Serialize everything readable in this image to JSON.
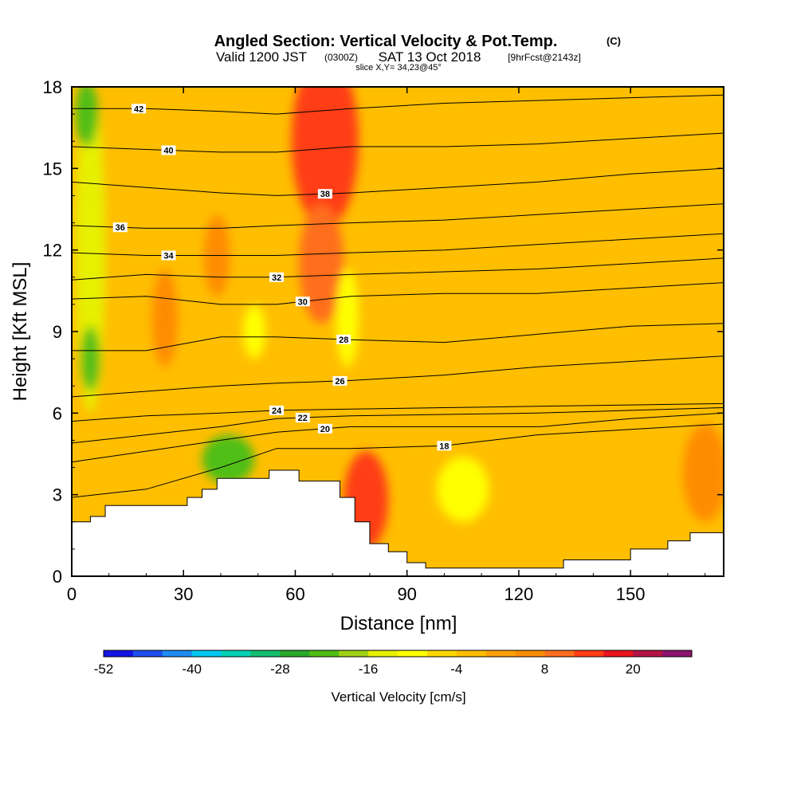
{
  "chart_data": {
    "type": "heatmap",
    "title": "Angled Section: Vertical Velocity & Pot.Temp.",
    "title_unit": "(C)",
    "subtitle_valid": "Valid 1200 JST",
    "subtitle_utc": "(0300Z)",
    "subtitle_date": "SAT 13 Oct 2018",
    "subtitle_fcst": "[9hrFcst@2143z]",
    "subtitle_slice": "slice X,Y= 34,23@45°",
    "xlabel": "Distance [nm]",
    "ylabel": "Height [Kft MSL]",
    "xlim": [
      0,
      175
    ],
    "ylim": [
      0,
      18
    ],
    "x_ticks": [
      0,
      30,
      60,
      90,
      120,
      150
    ],
    "x_tick_labels": [
      "0",
      "30",
      "60",
      "90",
      "120",
      "150"
    ],
    "y_ticks": [
      0,
      3,
      6,
      9,
      12,
      15,
      18
    ],
    "y_tick_labels": [
      "0",
      "3",
      "6",
      "9",
      "12",
      "15",
      "18"
    ],
    "colorbar": {
      "label": "Vertical Velocity [cm/s]",
      "min": -52,
      "max": 28,
      "step": 4,
      "tick_values": [
        -52,
        -40,
        -28,
        -16,
        -4,
        8,
        20
      ],
      "tick_labels": [
        "-52",
        "-40",
        "-28",
        "-16",
        "-4",
        "8",
        "20"
      ],
      "colors": [
        "#1414e6",
        "#1e50f0",
        "#1e8cf5",
        "#00c8f0",
        "#00d2b4",
        "#14be6e",
        "#28aa28",
        "#50be14",
        "#a0d214",
        "#e6f000",
        "#ffff00",
        "#ffd700",
        "#ffbe00",
        "#ffa000",
        "#ff8c00",
        "#ff6e1e",
        "#ff3c14",
        "#eb141e",
        "#b41446",
        "#8c146e"
      ]
    },
    "terrain_nm_kft": [
      [
        0,
        2.0
      ],
      [
        5,
        2.2
      ],
      [
        9,
        2.6
      ],
      [
        27,
        2.6
      ],
      [
        31,
        2.9
      ],
      [
        35,
        3.2
      ],
      [
        39,
        3.6
      ],
      [
        49,
        3.6
      ],
      [
        53,
        3.9
      ],
      [
        58,
        3.9
      ],
      [
        61,
        3.5
      ],
      [
        68,
        3.5
      ],
      [
        72,
        2.9
      ],
      [
        76,
        2.0
      ],
      [
        80,
        1.2
      ],
      [
        85,
        0.9
      ],
      [
        90,
        0.5
      ],
      [
        95,
        0.3
      ],
      [
        130,
        0.3
      ],
      [
        132,
        0.6
      ],
      [
        145,
        0.6
      ],
      [
        150,
        1.0
      ],
      [
        160,
        1.3
      ],
      [
        166,
        1.6
      ],
      [
        175,
        1.6
      ]
    ],
    "theta_isentropes": [
      {
        "value": 18,
        "label_x": 100,
        "points": [
          [
            0,
            2.9
          ],
          [
            20,
            3.2
          ],
          [
            40,
            4.0
          ],
          [
            55,
            4.7
          ],
          [
            75,
            4.7
          ],
          [
            100,
            4.8
          ],
          [
            125,
            5.2
          ],
          [
            150,
            5.4
          ],
          [
            175,
            5.6
          ]
        ]
      },
      {
        "value": 20,
        "label_x": 68,
        "points": [
          [
            0,
            4.2
          ],
          [
            20,
            4.6
          ],
          [
            40,
            5.0
          ],
          [
            55,
            5.3
          ],
          [
            75,
            5.5
          ],
          [
            100,
            5.5
          ],
          [
            126,
            5.5
          ],
          [
            150,
            5.8
          ],
          [
            175,
            6.0
          ]
        ]
      },
      {
        "value": 22,
        "label_x": 62,
        "points": [
          [
            0,
            4.9
          ],
          [
            20,
            5.2
          ],
          [
            40,
            5.5
          ],
          [
            55,
            5.8
          ],
          [
            75,
            5.9
          ],
          [
            100,
            5.95
          ],
          [
            125,
            6.0
          ],
          [
            150,
            6.1
          ],
          [
            175,
            6.2
          ]
        ]
      },
      {
        "value": 24,
        "label_x": 55,
        "points": [
          [
            0,
            5.7
          ],
          [
            20,
            5.9
          ],
          [
            40,
            6.0
          ],
          [
            55,
            6.1
          ],
          [
            75,
            6.15
          ],
          [
            100,
            6.2
          ],
          [
            125,
            6.25
          ],
          [
            150,
            6.3
          ],
          [
            175,
            6.35
          ]
        ]
      },
      {
        "value": 26,
        "label_x": 72,
        "points": [
          [
            0,
            6.6
          ],
          [
            20,
            6.8
          ],
          [
            40,
            7.0
          ],
          [
            55,
            7.1
          ],
          [
            75,
            7.2
          ],
          [
            100,
            7.4
          ],
          [
            125,
            7.7
          ],
          [
            150,
            7.9
          ],
          [
            175,
            8.1
          ]
        ]
      },
      {
        "value": 28,
        "label_x": 73,
        "points": [
          [
            0,
            8.3
          ],
          [
            20,
            8.3
          ],
          [
            40,
            8.8
          ],
          [
            55,
            8.8
          ],
          [
            75,
            8.7
          ],
          [
            100,
            8.6
          ],
          [
            125,
            8.9
          ],
          [
            150,
            9.2
          ],
          [
            175,
            9.3
          ]
        ]
      },
      {
        "value": 30,
        "label_x": 62,
        "points": [
          [
            0,
            10.2
          ],
          [
            20,
            10.3
          ],
          [
            40,
            10.0
          ],
          [
            55,
            10.0
          ],
          [
            75,
            10.3
          ],
          [
            100,
            10.4
          ],
          [
            125,
            10.4
          ],
          [
            150,
            10.6
          ],
          [
            175,
            10.8
          ]
        ]
      },
      {
        "value": 32,
        "label_x": 55,
        "points": [
          [
            0,
            10.9
          ],
          [
            20,
            11.1
          ],
          [
            40,
            11.0
          ],
          [
            55,
            11.0
          ],
          [
            75,
            11.1
          ],
          [
            100,
            11.2
          ],
          [
            125,
            11.3
          ],
          [
            150,
            11.5
          ],
          [
            175,
            11.7
          ]
        ]
      },
      {
        "value": 34,
        "label_x": 26,
        "points": [
          [
            0,
            11.9
          ],
          [
            20,
            11.8
          ],
          [
            40,
            11.8
          ],
          [
            55,
            11.8
          ],
          [
            75,
            11.9
          ],
          [
            100,
            12.0
          ],
          [
            125,
            12.2
          ],
          [
            150,
            12.4
          ],
          [
            175,
            12.6
          ]
        ]
      },
      {
        "value": 36,
        "label_x": 13,
        "points": [
          [
            0,
            12.9
          ],
          [
            20,
            12.8
          ],
          [
            40,
            12.8
          ],
          [
            55,
            12.9
          ],
          [
            75,
            13.0
          ],
          [
            100,
            13.1
          ],
          [
            125,
            13.3
          ],
          [
            150,
            13.5
          ],
          [
            175,
            13.7
          ]
        ]
      },
      {
        "value": 38,
        "label_x": 68,
        "points": [
          [
            0,
            14.5
          ],
          [
            20,
            14.3
          ],
          [
            40,
            14.1
          ],
          [
            55,
            14.0
          ],
          [
            75,
            14.1
          ],
          [
            100,
            14.3
          ],
          [
            125,
            14.5
          ],
          [
            150,
            14.8
          ],
          [
            175,
            15.0
          ]
        ]
      },
      {
        "value": 40,
        "label_x": 26,
        "points": [
          [
            0,
            15.8
          ],
          [
            20,
            15.7
          ],
          [
            40,
            15.6
          ],
          [
            55,
            15.6
          ],
          [
            75,
            15.8
          ],
          [
            100,
            15.8
          ],
          [
            125,
            15.9
          ],
          [
            150,
            16.1
          ],
          [
            175,
            16.3
          ]
        ]
      },
      {
        "value": 42,
        "label_x": 18,
        "points": [
          [
            0,
            17.2
          ],
          [
            20,
            17.2
          ],
          [
            40,
            17.1
          ],
          [
            55,
            17.0
          ],
          [
            75,
            17.2
          ],
          [
            100,
            17.4
          ],
          [
            125,
            17.5
          ],
          [
            150,
            17.6
          ],
          [
            175,
            17.7
          ]
        ]
      }
    ],
    "velocity_features": [
      {
        "kind": "updraft",
        "x": 68,
        "y": 16.0,
        "rx": 9,
        "ry": 3.2,
        "value": 14
      },
      {
        "kind": "updraft",
        "x": 67,
        "y": 11.5,
        "rx": 6,
        "ry": 2.2,
        "value": 8
      },
      {
        "kind": "updraft",
        "x": 79,
        "y": 2.8,
        "rx": 6,
        "ry": 1.8,
        "value": 12
      },
      {
        "kind": "updraft",
        "x": 25,
        "y": 9.5,
        "rx": 3.5,
        "ry": 1.8,
        "value": 6
      },
      {
        "kind": "updraft",
        "x": 39,
        "y": 11.8,
        "rx": 3.5,
        "ry": 1.5,
        "value": 6
      },
      {
        "kind": "updraft",
        "x": 170,
        "y": 3.8,
        "rx": 6,
        "ry": 1.8,
        "value": 6
      },
      {
        "kind": "downdraft",
        "x": 5,
        "y": 12.0,
        "rx": 4,
        "ry": 6,
        "value": -14
      },
      {
        "kind": "downdraft",
        "x": 4,
        "y": 17.0,
        "rx": 3,
        "ry": 1.2,
        "value": -24
      },
      {
        "kind": "downdraft",
        "x": 5,
        "y": 8.0,
        "rx": 2.5,
        "ry": 1.2,
        "value": -22
      },
      {
        "kind": "downdraft",
        "x": 42,
        "y": 4.3,
        "rx": 7,
        "ry": 0.9,
        "value": -24
      },
      {
        "kind": "downdraft",
        "x": 74,
        "y": 9.5,
        "rx": 3,
        "ry": 1.8,
        "value": -12
      },
      {
        "kind": "downdraft",
        "x": 105,
        "y": 3.2,
        "rx": 7,
        "ry": 1.2,
        "value": -12
      },
      {
        "kind": "downdraft",
        "x": 49,
        "y": 9.0,
        "rx": 3,
        "ry": 1.0,
        "value": -12
      }
    ]
  }
}
